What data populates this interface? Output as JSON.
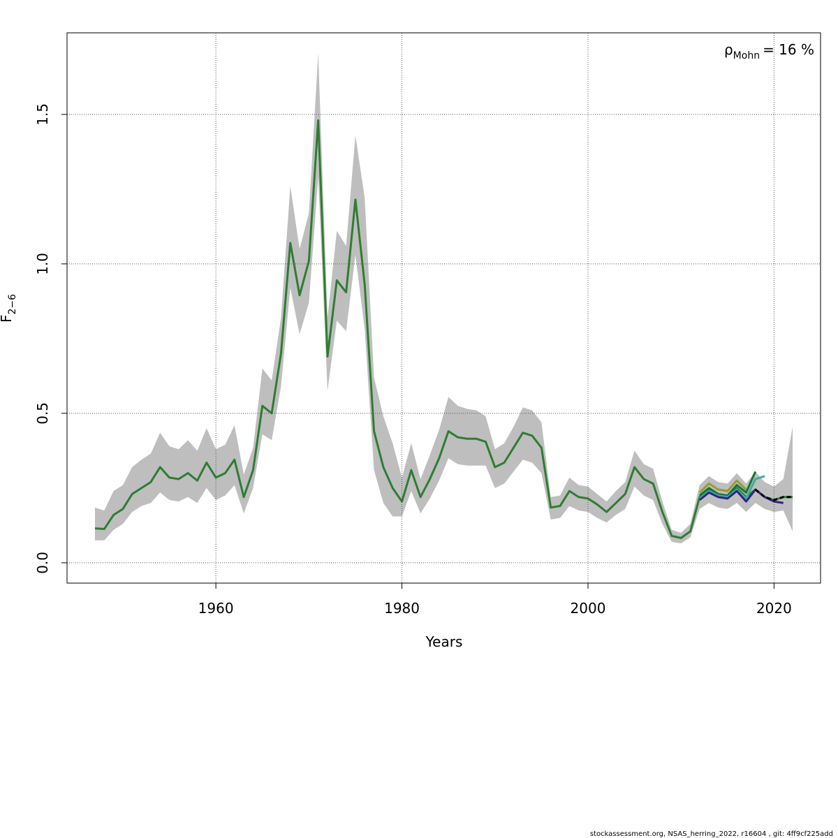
{
  "chart_data": {
    "type": "line",
    "x_label": "Years",
    "y_label": {
      "symbol": "F",
      "subscript": "2−6"
    },
    "annotation": {
      "symbol": "ρ",
      "subscript": "Mohn",
      "text": "= 16 %"
    },
    "footer": "stockassessment.org, NSAS_herring_2022, r16604 , git: 4ff9cf225add",
    "xlim": [
      1944,
      2025
    ],
    "ylim": [
      -0.068,
      1.773
    ],
    "xticks": [
      1960,
      1980,
      2000,
      2020
    ],
    "yticks": [
      {
        "value": 0,
        "label": "0.0"
      },
      0.5,
      {
        "value": 1,
        "label": "1.0"
      },
      1.5
    ],
    "grid": true,
    "band_color": "#bebebe",
    "x": [
      1947,
      1948,
      1949,
      1950,
      1951,
      1952,
      1953,
      1954,
      1955,
      1956,
      1957,
      1958,
      1959,
      1960,
      1961,
      1962,
      1963,
      1964,
      1965,
      1966,
      1967,
      1968,
      1969,
      1970,
      1971,
      1972,
      1973,
      1974,
      1975,
      1976,
      1977,
      1978,
      1979,
      1980,
      1981,
      1982,
      1983,
      1984,
      1985,
      1986,
      1987,
      1988,
      1989,
      1990,
      1991,
      1992,
      1993,
      1994,
      1995,
      1996,
      1997,
      1998,
      1999,
      2000,
      2001,
      2002,
      2003,
      2004,
      2005,
      2006,
      2007,
      2008,
      2009,
      2010,
      2011,
      2012,
      2013,
      2014,
      2015,
      2016,
      2017,
      2018,
      2019,
      2020,
      2021,
      2022
    ],
    "lower": [
      0.075,
      0.075,
      0.11,
      0.13,
      0.17,
      0.19,
      0.2,
      0.235,
      0.21,
      0.205,
      0.22,
      0.2,
      0.25,
      0.21,
      0.225,
      0.26,
      0.165,
      0.25,
      0.43,
      0.41,
      0.59,
      0.92,
      0.765,
      0.87,
      1.29,
      0.575,
      0.81,
      0.775,
      1.03,
      0.78,
      0.31,
      0.2,
      0.155,
      0.155,
      0.24,
      0.165,
      0.215,
      0.275,
      0.35,
      0.33,
      0.325,
      0.325,
      0.325,
      0.25,
      0.265,
      0.305,
      0.345,
      0.335,
      0.3,
      0.145,
      0.15,
      0.19,
      0.175,
      0.17,
      0.15,
      0.135,
      0.16,
      0.18,
      0.255,
      0.225,
      0.21,
      0.13,
      0.07,
      0.065,
      0.085,
      0.18,
      0.2,
      0.185,
      0.18,
      0.2,
      0.17,
      0.2,
      0.18,
      0.17,
      0.175,
      0.105
    ],
    "upper": [
      0.185,
      0.175,
      0.24,
      0.26,
      0.32,
      0.345,
      0.365,
      0.435,
      0.39,
      0.38,
      0.41,
      0.375,
      0.45,
      0.38,
      0.395,
      0.46,
      0.295,
      0.385,
      0.65,
      0.61,
      0.82,
      1.26,
      1.05,
      1.17,
      1.705,
      0.82,
      1.11,
      1.06,
      1.43,
      1.22,
      0.62,
      0.49,
      0.4,
      0.285,
      0.4,
      0.28,
      0.36,
      0.445,
      0.555,
      0.525,
      0.515,
      0.51,
      0.49,
      0.38,
      0.4,
      0.455,
      0.52,
      0.51,
      0.47,
      0.22,
      0.225,
      0.285,
      0.26,
      0.255,
      0.23,
      0.205,
      0.24,
      0.27,
      0.375,
      0.33,
      0.315,
      0.205,
      0.11,
      0.1,
      0.13,
      0.26,
      0.29,
      0.27,
      0.265,
      0.3,
      0.265,
      0.305,
      0.27,
      0.255,
      0.28,
      0.455
    ],
    "series": [
      {
        "color": "#2e7d32",
        "dash": false,
        "values": [
          0.115,
          0.113,
          0.16,
          0.18,
          0.23,
          0.25,
          0.27,
          0.32,
          0.285,
          0.28,
          0.3,
          0.275,
          0.335,
          0.285,
          0.3,
          0.345,
          0.22,
          0.31,
          0.525,
          0.5,
          0.7,
          1.07,
          0.895,
          1.01,
          1.48,
          0.69,
          0.945,
          0.905,
          1.215,
          0.93,
          0.44,
          0.32,
          0.25,
          0.205,
          0.31,
          0.22,
          0.28,
          0.35,
          0.44,
          0.42,
          0.415,
          0.415,
          0.405,
          0.32,
          0.335,
          0.385,
          0.435,
          0.425,
          0.385,
          0.185,
          0.19,
          0.24,
          0.22,
          0.215,
          0.195,
          0.17,
          0.2,
          0.23,
          0.32,
          0.28,
          0.265,
          0.17,
          0.09,
          0.083,
          0.105,
          0.22,
          0.245,
          0.225,
          0.22,
          0.25,
          0.22,
          0.245,
          0.22,
          0.21,
          0.22,
          0.22
        ]
      },
      {
        "color": "#999933",
        "dash": false,
        "values": [
          null,
          null,
          null,
          null,
          null,
          null,
          null,
          null,
          null,
          null,
          null,
          null,
          null,
          null,
          null,
          null,
          null,
          null,
          null,
          null,
          null,
          null,
          null,
          null,
          null,
          null,
          null,
          null,
          null,
          null,
          null,
          null,
          null,
          null,
          null,
          null,
          null,
          null,
          null,
          null,
          null,
          null,
          null,
          null,
          null,
          null,
          null,
          null,
          null,
          null,
          null,
          null,
          null,
          null,
          null,
          null,
          null,
          null,
          null,
          null,
          null,
          null,
          null,
          null,
          null,
          0.235,
          0.265,
          0.245,
          0.24,
          0.275,
          0.245,
          null,
          null,
          null,
          null,
          null
        ]
      },
      {
        "color": "#117733",
        "dash": false,
        "values": [
          null,
          null,
          null,
          null,
          null,
          null,
          null,
          null,
          null,
          null,
          null,
          null,
          null,
          null,
          null,
          null,
          null,
          null,
          null,
          null,
          null,
          null,
          null,
          null,
          null,
          null,
          null,
          null,
          null,
          null,
          null,
          null,
          null,
          null,
          null,
          null,
          null,
          null,
          null,
          null,
          null,
          null,
          null,
          null,
          null,
          null,
          null,
          null,
          null,
          null,
          null,
          null,
          null,
          null,
          null,
          null,
          null,
          null,
          null,
          null,
          null,
          null,
          null,
          null,
          null,
          0.225,
          0.25,
          0.23,
          0.225,
          0.26,
          0.235,
          0.305,
          null,
          null,
          null,
          null
        ]
      },
      {
        "color": "#44aa99",
        "dash": false,
        "values": [
          null,
          null,
          null,
          null,
          null,
          null,
          null,
          null,
          null,
          null,
          null,
          null,
          null,
          null,
          null,
          null,
          null,
          null,
          null,
          null,
          null,
          null,
          null,
          null,
          null,
          null,
          null,
          null,
          null,
          null,
          null,
          null,
          null,
          null,
          null,
          null,
          null,
          null,
          null,
          null,
          null,
          null,
          null,
          null,
          null,
          null,
          null,
          null,
          null,
          null,
          null,
          null,
          null,
          null,
          null,
          null,
          null,
          null,
          null,
          null,
          null,
          null,
          null,
          null,
          null,
          0.215,
          0.24,
          0.225,
          0.22,
          0.245,
          0.215,
          0.28,
          0.29,
          null,
          null,
          null
        ]
      },
      {
        "color": "#332288",
        "dash": false,
        "values": [
          null,
          null,
          null,
          null,
          null,
          null,
          null,
          null,
          null,
          null,
          null,
          null,
          null,
          null,
          null,
          null,
          null,
          null,
          null,
          null,
          null,
          null,
          null,
          null,
          null,
          null,
          null,
          null,
          null,
          null,
          null,
          null,
          null,
          null,
          null,
          null,
          null,
          null,
          null,
          null,
          null,
          null,
          null,
          null,
          null,
          null,
          null,
          null,
          null,
          null,
          null,
          null,
          null,
          null,
          null,
          null,
          null,
          null,
          null,
          null,
          null,
          null,
          null,
          null,
          null,
          0.21,
          0.235,
          0.22,
          0.215,
          0.24,
          0.205,
          0.245,
          0.22,
          0.205,
          0.2,
          null
        ]
      },
      {
        "color": "#000000",
        "dash": true,
        "values": [
          null,
          null,
          null,
          null,
          null,
          null,
          null,
          null,
          null,
          null,
          null,
          null,
          null,
          null,
          null,
          null,
          null,
          null,
          null,
          null,
          null,
          null,
          null,
          null,
          null,
          null,
          null,
          null,
          null,
          null,
          null,
          null,
          null,
          null,
          null,
          null,
          null,
          null,
          null,
          null,
          null,
          null,
          null,
          null,
          null,
          null,
          null,
          null,
          null,
          null,
          null,
          null,
          null,
          null,
          null,
          null,
          null,
          null,
          null,
          null,
          null,
          null,
          null,
          null,
          null,
          null,
          null,
          null,
          null,
          null,
          null,
          0.245,
          0.22,
          0.21,
          0.22,
          0.22
        ]
      }
    ]
  }
}
